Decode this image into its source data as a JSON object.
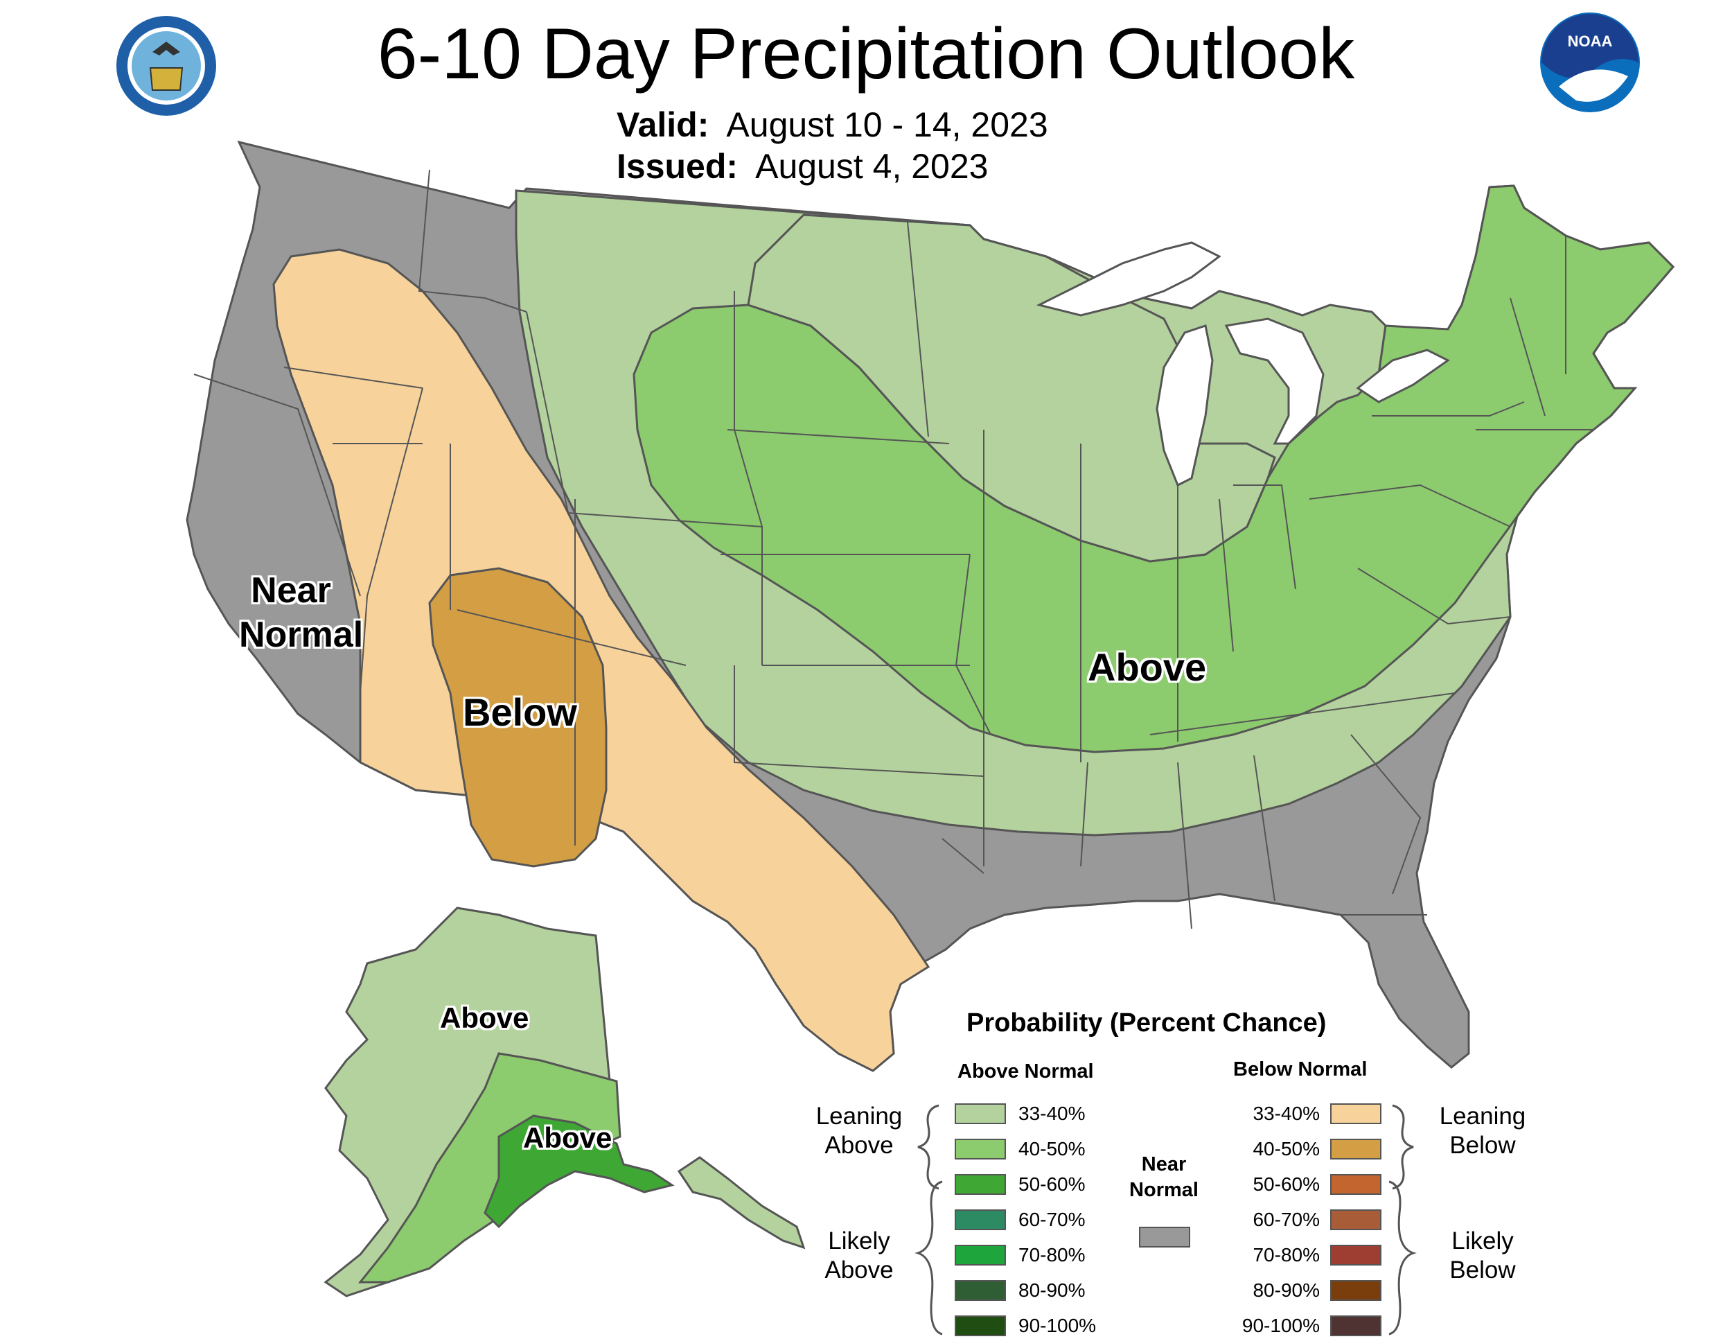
{
  "title": "6-10 Day Precipitation Outlook",
  "valid": {
    "label": "Valid:",
    "value": "August 10 - 14, 2023"
  },
  "issued": {
    "label": "Issued:",
    "value": "August 4, 2023"
  },
  "logos": {
    "left": {
      "name": "department-of-commerce-seal",
      "text": "DEPARTMENT OF COMMERCE UNITED STATES OF AMERICA"
    },
    "right": {
      "name": "noaa-logo",
      "text": "NOAA"
    }
  },
  "map_labels": {
    "near_normal_line1": "Near",
    "near_normal_line2": "Normal",
    "below": "Below",
    "above_conus": "Above",
    "above_alaska_1": "Above",
    "above_alaska_2": "Above"
  },
  "colors": {
    "near_normal": "#999999",
    "above_33_40": "#b3d29d",
    "above_40_50": "#8ccb6e",
    "above_50_60": "#3fa835",
    "above_60_70": "#2d8b63",
    "above_70_80": "#1ea53b",
    "above_80_90": "#2f5e34",
    "above_90_100": "#1f4d12",
    "below_33_40": "#f7d39b",
    "below_40_50": "#d49e45",
    "below_50_60": "#c2652e",
    "below_60_70": "#a85c37",
    "below_70_80": "#9e3e33",
    "below_80_90": "#7a3d0c",
    "below_90_100": "#4f3333",
    "border": "#555555",
    "water": "#ffffff"
  },
  "legend": {
    "title": "Probability (Percent Chance)",
    "above_head": "Above Normal",
    "below_head": "Below Normal",
    "near_normal_line1": "Near",
    "near_normal_line2": "Normal",
    "above_items": [
      "33-40%",
      "40-50%",
      "50-60%",
      "60-70%",
      "70-80%",
      "80-90%",
      "90-100%"
    ],
    "below_items": [
      "33-40%",
      "40-50%",
      "50-60%",
      "60-70%",
      "70-80%",
      "80-90%",
      "90-100%"
    ],
    "leaning_above_1": "Leaning",
    "leaning_above_2": "Above",
    "likely_above_1": "Likely",
    "likely_above_2": "Above",
    "leaning_below_1": "Leaning",
    "leaning_below_2": "Below",
    "likely_below_1": "Likely",
    "likely_below_2": "Below"
  }
}
